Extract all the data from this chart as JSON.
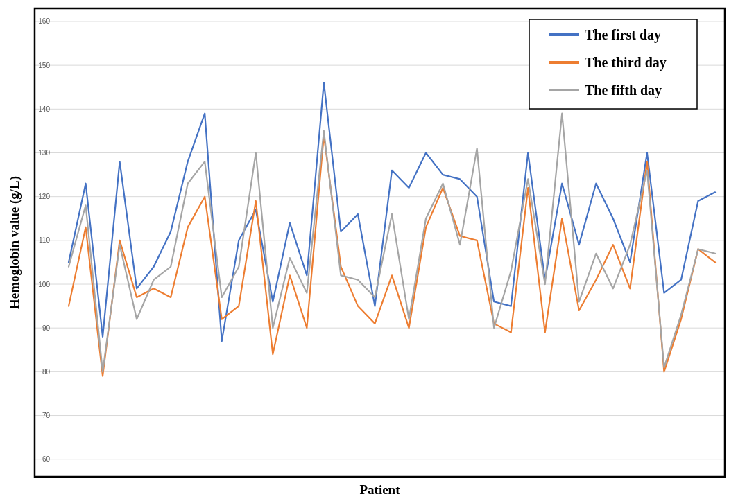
{
  "chart_data": {
    "type": "line",
    "xlabel": "Patient",
    "ylabel": "Hemoglobin value  (g/L)",
    "categories": [
      null,
      null,
      null,
      null,
      null,
      null,
      null,
      null,
      null,
      null,
      null,
      null,
      null,
      null,
      null,
      null,
      null,
      null,
      null,
      null,
      null,
      null,
      null,
      null,
      null,
      null,
      null,
      null,
      null,
      null,
      null,
      null,
      null,
      null,
      null,
      null,
      null,
      null,
      null
    ],
    "series": [
      {
        "name": "The first day",
        "color": "#4472c4",
        "values": [
          105,
          123,
          88,
          128,
          99,
          104,
          112,
          128,
          139,
          87,
          110,
          117,
          96,
          114,
          102,
          146,
          112,
          116,
          95,
          126,
          122,
          130,
          125,
          124,
          120,
          96,
          95,
          130,
          101,
          123,
          109,
          123,
          115,
          105,
          130,
          98,
          101,
          119,
          121
        ]
      },
      {
        "name": "The third day",
        "color": "#ed7d31",
        "values": [
          95,
          113,
          79,
          110,
          97,
          99,
          97,
          113,
          120,
          92,
          95,
          119,
          84,
          102,
          90,
          134,
          104,
          95,
          91,
          102,
          90,
          113,
          122,
          111,
          110,
          91,
          89,
          122,
          89,
          115,
          94,
          101,
          109,
          99,
          128,
          80,
          92,
          108,
          105
        ]
      },
      {
        "name": "The fifth day",
        "color": "#a5a5a5",
        "values": [
          104,
          118,
          80,
          109,
          92,
          101,
          104,
          123,
          128,
          97,
          104,
          130,
          90,
          106,
          98,
          135,
          102,
          101,
          97,
          116,
          92,
          115,
          123,
          109,
          131,
          90,
          103,
          124,
          100,
          139,
          96,
          107,
          99,
          109,
          126,
          81,
          93,
          108,
          107
        ]
      }
    ],
    "ylim": [
      56,
      163
    ],
    "yticks": [
      60,
      70,
      80,
      90,
      100,
      110,
      120,
      130,
      140,
      150,
      160
    ],
    "grid": "y",
    "legend": "top right",
    "marker": "none",
    "line_style": "solid"
  }
}
